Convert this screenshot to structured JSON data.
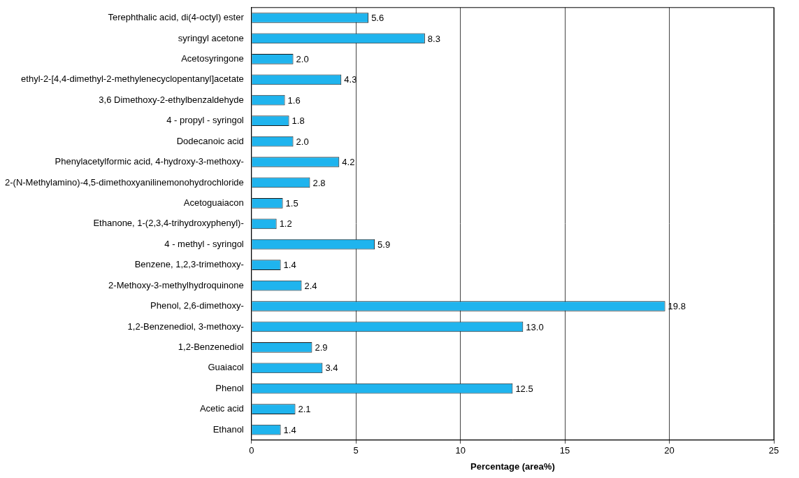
{
  "chart_data": {
    "type": "bar",
    "orientation": "horizontal",
    "x_label": "Percentage (area%)",
    "categories": [
      "Terephthalic acid, di(4-octyl) ester",
      "syringyl acetone",
      "Acetosyringone",
      "ethyl-2-[4,4-dimethyl-2-methylenecyclopentanyl]acetate",
      "3,6 Dimethoxy-2-ethylbenzaldehyde",
      "4 - propyl - syringol",
      "Dodecanoic acid",
      "Phenylacetylformic acid, 4-hydroxy-3-methoxy-",
      "2-(N-Methylamino)-4,5-dimethoxyanilinemonohydrochloride",
      "Acetoguaiacon",
      "Ethanone, 1-(2,3,4-trihydroxyphenyl)-",
      "4 - methyl - syringol",
      "Benzene, 1,2,3-trimethoxy-",
      "2-Methoxy-3-methylhydroquinone",
      "Phenol, 2,6-dimethoxy-",
      "1,2-Benzenediol, 3-methoxy-",
      "1,2-Benzenediol",
      "Guaiacol",
      "Phenol",
      "Acetic acid",
      "Ethanol"
    ],
    "values": [
      5.6,
      8.3,
      2.0,
      4.3,
      1.6,
      1.8,
      2.0,
      4.2,
      2.8,
      1.5,
      1.2,
      5.9,
      1.4,
      2.4,
      19.8,
      13.0,
      2.9,
      3.4,
      12.5,
      2.1,
      1.4
    ],
    "value_labels": [
      "5.6",
      "8.3",
      "2.0",
      "4.3",
      "1.6",
      "1.8",
      "2.0",
      "4.2",
      "2.8",
      "1.5",
      "1.2",
      "5.9",
      "1.4",
      "2.4",
      "19.8",
      "13.0",
      "2.9",
      "3.4",
      "12.5",
      "2.1",
      "1.4"
    ],
    "data_labels": true,
    "color": "#1fb4ee",
    "xlim": [
      0,
      25
    ],
    "xticks": [
      0,
      5,
      10,
      15,
      20,
      25
    ],
    "grid": true
  }
}
